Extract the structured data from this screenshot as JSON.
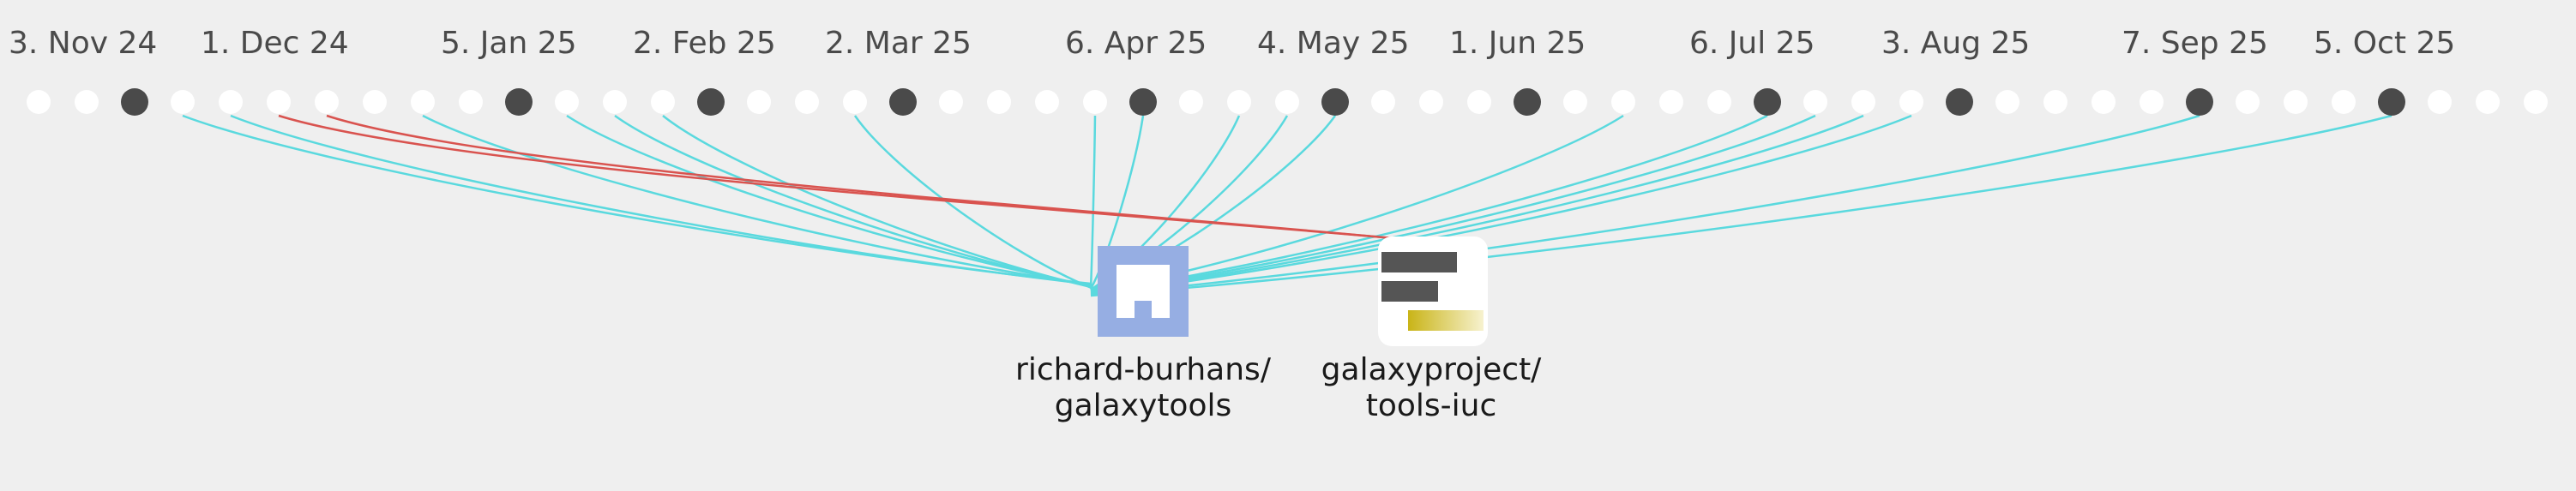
{
  "timeline": {
    "date_labels": [
      "3. Nov 24",
      "1. Dec 24",
      "5. Jan 25",
      "2. Feb 25",
      "2. Mar 25",
      "6. Apr 25",
      "4. May 25",
      "1. Jun 25",
      "6. Jul 25",
      "3. Aug 25",
      "7. Sep 25",
      "5. Oct 25"
    ],
    "active_weeks": [
      2,
      10,
      14,
      18,
      23,
      27,
      31,
      36,
      40,
      45,
      49
    ],
    "label_weeks": [
      0,
      4,
      9,
      13,
      17,
      22,
      26,
      30,
      35,
      39,
      44,
      48
    ],
    "weeks": 53,
    "colors": {
      "inactive_dot": "#ffffff",
      "active_dot": "#4a4a4a",
      "link_to_galaxytools": "#5ad9de",
      "link_to_tools_iuc": "#d9534f"
    }
  },
  "repositories": [
    {
      "id": "galaxytools",
      "label_line1": "richard-burhans/",
      "label_line2": "galaxytools",
      "icon": "building-icon",
      "color": "#96aee3",
      "link_weeks": [
        3,
        4,
        8,
        11,
        12,
        13,
        17,
        22,
        23,
        25,
        26,
        27,
        33,
        36,
        37,
        38,
        39,
        45,
        49
      ],
      "link_color": "#5ad9de"
    },
    {
      "id": "tools-iuc",
      "label_line1": "galaxyproject/",
      "label_line2": "tools-iuc",
      "icon": "galaxy-logo-icon",
      "color": "#ffffff",
      "link_weeks": [
        5,
        6
      ],
      "link_color": "#d9534f"
    }
  ]
}
